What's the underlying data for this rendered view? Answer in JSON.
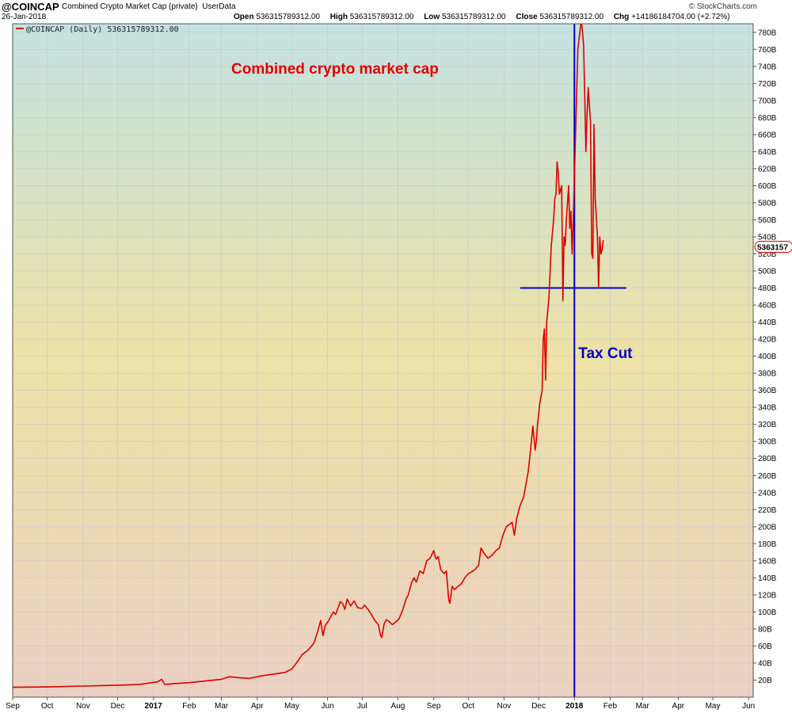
{
  "header": {
    "symbol": "@COINCAP",
    "description": "Combined Crypto Market Cap (private)",
    "source_tag": "UserData",
    "date": "26-Jan-2018",
    "open_label": "Open",
    "open": "536315789312.00",
    "high_label": "High",
    "high": "536315789312.00",
    "low_label": "Low",
    "low": "536315789312.00",
    "close_label": "Close",
    "close": "536315789312.00",
    "chg_label": "Chg",
    "chg": "+14186184704.00 (+2.72%)",
    "brand": "© StockCharts.com"
  },
  "legend": {
    "text": "@COINCAP (Daily) 536315789312.00"
  },
  "price_tag": "5363157",
  "colors": {
    "series": "#dd0000",
    "annotation_line": "#0000c8",
    "annotation_red_text": "#e60000",
    "bg_top": "#c3e2e1",
    "bg_mid": "#eee2a6",
    "bg_bottom": "#ecd0c2",
    "grid": "#c8c8c8"
  },
  "chart_data": {
    "type": "line",
    "title": "Combined crypto market cap",
    "y_unit": "B",
    "ylim": [
      0,
      790
    ],
    "xlim": [
      "2016-09-01",
      "2018-06-05"
    ],
    "y_ticks": [
      20,
      40,
      60,
      80,
      100,
      120,
      140,
      160,
      180,
      200,
      220,
      240,
      260,
      280,
      300,
      320,
      340,
      360,
      380,
      400,
      420,
      440,
      460,
      480,
      500,
      520,
      540,
      560,
      580,
      600,
      620,
      640,
      660,
      680,
      700,
      720,
      740,
      760,
      780
    ],
    "x_ticks": [
      {
        "label": "Sep",
        "x": "2016-09-01",
        "bold": false
      },
      {
        "label": "Oct",
        "x": "2016-10-01",
        "bold": false
      },
      {
        "label": "Nov",
        "x": "2016-11-01",
        "bold": false
      },
      {
        "label": "Dec",
        "x": "2016-12-01",
        "bold": false
      },
      {
        "label": "2017",
        "x": "2017-01-01",
        "bold": true
      },
      {
        "label": "Feb",
        "x": "2017-02-01",
        "bold": false
      },
      {
        "label": "Mar",
        "x": "2017-03-01",
        "bold": false
      },
      {
        "label": "Apr",
        "x": "2017-04-01",
        "bold": false
      },
      {
        "label": "May",
        "x": "2017-05-01",
        "bold": false
      },
      {
        "label": "Jun",
        "x": "2017-06-01",
        "bold": false
      },
      {
        "label": "Jul",
        "x": "2017-07-01",
        "bold": false
      },
      {
        "label": "Aug",
        "x": "2017-08-01",
        "bold": false
      },
      {
        "label": "Sep",
        "x": "2017-09-01",
        "bold": false
      },
      {
        "label": "Oct",
        "x": "2017-10-01",
        "bold": false
      },
      {
        "label": "Nov",
        "x": "2017-11-01",
        "bold": false
      },
      {
        "label": "Dec",
        "x": "2017-12-01",
        "bold": false
      },
      {
        "label": "2018",
        "x": "2018-01-01",
        "bold": true
      },
      {
        "label": "Feb",
        "x": "2018-02-01",
        "bold": false
      },
      {
        "label": "Mar",
        "x": "2018-03-01",
        "bold": false
      },
      {
        "label": "Apr",
        "x": "2018-04-01",
        "bold": false
      },
      {
        "label": "May",
        "x": "2018-05-01",
        "bold": false
      },
      {
        "label": "Jun",
        "x": "2018-06-01",
        "bold": false
      }
    ],
    "series": [
      {
        "name": "@COINCAP (Daily)",
        "points": [
          [
            "2016-09-01",
            11.5
          ],
          [
            "2016-10-01",
            12
          ],
          [
            "2016-11-01",
            13
          ],
          [
            "2016-12-01",
            14
          ],
          [
            "2016-12-20",
            15
          ],
          [
            "2017-01-05",
            18
          ],
          [
            "2017-01-08",
            21
          ],
          [
            "2017-01-11",
            15
          ],
          [
            "2017-01-20",
            16
          ],
          [
            "2017-02-01",
            17
          ],
          [
            "2017-02-15",
            19
          ],
          [
            "2017-03-01",
            21
          ],
          [
            "2017-03-08",
            24
          ],
          [
            "2017-03-15",
            23
          ],
          [
            "2017-03-25",
            22
          ],
          [
            "2017-04-05",
            25
          ],
          [
            "2017-04-15",
            27
          ],
          [
            "2017-04-25",
            29
          ],
          [
            "2017-05-01",
            33
          ],
          [
            "2017-05-05",
            40
          ],
          [
            "2017-05-10",
            50
          ],
          [
            "2017-05-15",
            55
          ],
          [
            "2017-05-20",
            63
          ],
          [
            "2017-05-23",
            75
          ],
          [
            "2017-05-26",
            90
          ],
          [
            "2017-05-28",
            72
          ],
          [
            "2017-05-30",
            84
          ],
          [
            "2017-06-02",
            90
          ],
          [
            "2017-06-06",
            100
          ],
          [
            "2017-06-08",
            97
          ],
          [
            "2017-06-12",
            112
          ],
          [
            "2017-06-14",
            110
          ],
          [
            "2017-06-16",
            103
          ],
          [
            "2017-06-18",
            115
          ],
          [
            "2017-06-21",
            107
          ],
          [
            "2017-06-24",
            113
          ],
          [
            "2017-06-27",
            105
          ],
          [
            "2017-07-01",
            104
          ],
          [
            "2017-07-03",
            108
          ],
          [
            "2017-07-06",
            103
          ],
          [
            "2017-07-09",
            97
          ],
          [
            "2017-07-12",
            90
          ],
          [
            "2017-07-15",
            85
          ],
          [
            "2017-07-17",
            72
          ],
          [
            "2017-07-18",
            70
          ],
          [
            "2017-07-20",
            86
          ],
          [
            "2017-07-22",
            91
          ],
          [
            "2017-07-25",
            88
          ],
          [
            "2017-07-27",
            85
          ],
          [
            "2017-07-30",
            88
          ],
          [
            "2017-08-02",
            92
          ],
          [
            "2017-08-05",
            102
          ],
          [
            "2017-08-08",
            115
          ],
          [
            "2017-08-10",
            120
          ],
          [
            "2017-08-13",
            135
          ],
          [
            "2017-08-15",
            140
          ],
          [
            "2017-08-17",
            135
          ],
          [
            "2017-08-20",
            148
          ],
          [
            "2017-08-23",
            145
          ],
          [
            "2017-08-26",
            160
          ],
          [
            "2017-08-29",
            163
          ],
          [
            "2017-09-01",
            172
          ],
          [
            "2017-09-03",
            162
          ],
          [
            "2017-09-05",
            165
          ],
          [
            "2017-09-07",
            150
          ],
          [
            "2017-09-10",
            145
          ],
          [
            "2017-09-12",
            148
          ],
          [
            "2017-09-14",
            115
          ],
          [
            "2017-09-15",
            110
          ],
          [
            "2017-09-17",
            130
          ],
          [
            "2017-09-19",
            126
          ],
          [
            "2017-09-22",
            130
          ],
          [
            "2017-09-25",
            133
          ],
          [
            "2017-09-28",
            140
          ],
          [
            "2017-10-01",
            145
          ],
          [
            "2017-10-04",
            147
          ],
          [
            "2017-10-07",
            150
          ],
          [
            "2017-10-10",
            155
          ],
          [
            "2017-10-12",
            175
          ],
          [
            "2017-10-15",
            168
          ],
          [
            "2017-10-18",
            163
          ],
          [
            "2017-10-22",
            167
          ],
          [
            "2017-10-25",
            172
          ],
          [
            "2017-10-28",
            175
          ],
          [
            "2017-10-31",
            190
          ],
          [
            "2017-11-03",
            200
          ],
          [
            "2017-11-06",
            203
          ],
          [
            "2017-11-08",
            205
          ],
          [
            "2017-11-10",
            190
          ],
          [
            "2017-11-12",
            210
          ],
          [
            "2017-11-15",
            225
          ],
          [
            "2017-11-18",
            235
          ],
          [
            "2017-11-20",
            250
          ],
          [
            "2017-11-22",
            265
          ],
          [
            "2017-11-24",
            290
          ],
          [
            "2017-11-26",
            318
          ],
          [
            "2017-11-28",
            290
          ],
          [
            "2017-11-29",
            300
          ],
          [
            "2017-11-30",
            320
          ],
          [
            "2017-12-02",
            345
          ],
          [
            "2017-12-04",
            360
          ],
          [
            "2017-12-05",
            420
          ],
          [
            "2017-12-06",
            432
          ],
          [
            "2017-12-07",
            372
          ],
          [
            "2017-12-08",
            440
          ],
          [
            "2017-12-10",
            470
          ],
          [
            "2017-12-12",
            530
          ],
          [
            "2017-12-14",
            560
          ],
          [
            "2017-12-15",
            585
          ],
          [
            "2017-12-16",
            590
          ],
          [
            "2017-12-17",
            628
          ],
          [
            "2017-12-18",
            615
          ],
          [
            "2017-12-19",
            590
          ],
          [
            "2017-12-21",
            600
          ],
          [
            "2017-12-22",
            465
          ],
          [
            "2017-12-23",
            540
          ],
          [
            "2017-12-24",
            530
          ],
          [
            "2017-12-25",
            560
          ],
          [
            "2017-12-27",
            600
          ],
          [
            "2017-12-28",
            550
          ],
          [
            "2017-12-29",
            570
          ],
          [
            "2017-12-30",
            520
          ],
          [
            "2017-12-31",
            560
          ],
          [
            "2018-01-02",
            660
          ],
          [
            "2018-01-04",
            760
          ],
          [
            "2018-01-07",
            795
          ],
          [
            "2018-01-09",
            765
          ],
          [
            "2018-01-11",
            640
          ],
          [
            "2018-01-12",
            685
          ],
          [
            "2018-01-13",
            715
          ],
          [
            "2018-01-15",
            675
          ],
          [
            "2018-01-16",
            520
          ],
          [
            "2018-01-17",
            515
          ],
          [
            "2018-01-18",
            672
          ],
          [
            "2018-01-19",
            585
          ],
          [
            "2018-01-21",
            540
          ],
          [
            "2018-01-22",
            480
          ],
          [
            "2018-01-23",
            540
          ],
          [
            "2018-01-24",
            520
          ],
          [
            "2018-01-25",
            525
          ],
          [
            "2018-01-26",
            536.3
          ]
        ]
      }
    ],
    "annotations": [
      {
        "type": "vline",
        "x": "2018-01-01",
        "label": "Tax Cut"
      },
      {
        "type": "hline",
        "y": 480,
        "x_from": "2017-11-15",
        "x_to": "2018-02-15"
      }
    ],
    "grid": true,
    "y_axis_side": "right"
  }
}
